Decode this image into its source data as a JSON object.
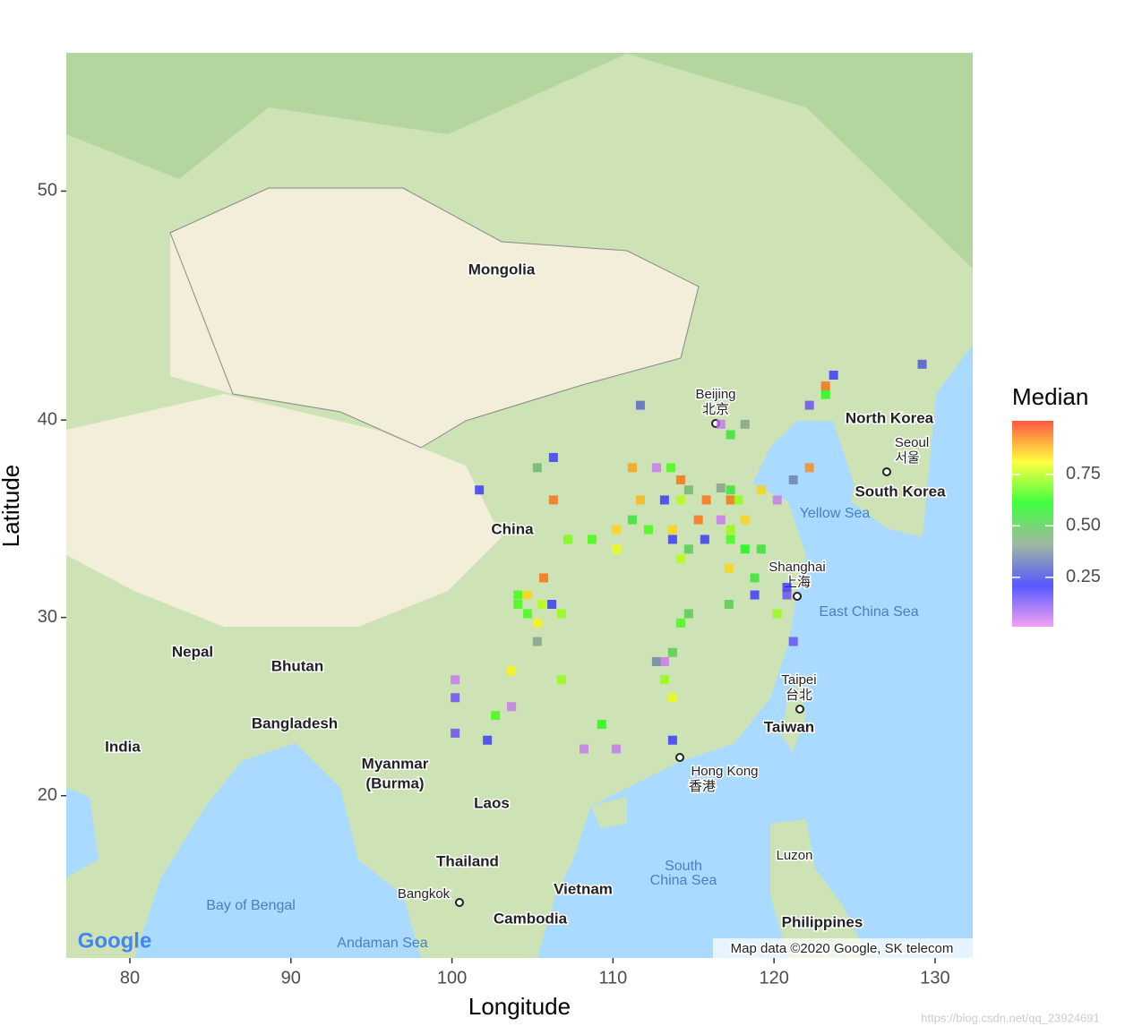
{
  "chart_data": {
    "type": "scatter",
    "x_label": "Longitude",
    "y_label": "Latitude",
    "projection": "mercator",
    "xlim": [
      76.05,
      132.34
    ],
    "ylim": [
      10.3,
      55.2
    ],
    "xticks": [
      80,
      90,
      100,
      110,
      120,
      130
    ],
    "yticks": [
      20,
      30,
      40,
      50
    ],
    "x": [
      123.7,
      129.2,
      123.2,
      123.2,
      122.2,
      111.7,
      116.7,
      117.3,
      118.2,
      106.3,
      105.3,
      111.2,
      112.7,
      113.6,
      114.2,
      122.2,
      121.2,
      101.7,
      106.3,
      111.7,
      113.2,
      114.2,
      115.8,
      117.3,
      114.7,
      117.3,
      117.8,
      119.2,
      120.2,
      116.7,
      111.2,
      112.2,
      113.7,
      115.3,
      116.7,
      117.3,
      118.2,
      110.2,
      113.7,
      115.7,
      117.3,
      107.2,
      108.7,
      110.2,
      114.7,
      118.2,
      119.2,
      114.2,
      105.7,
      117.2,
      118.8,
      120.8,
      118.8,
      120.8,
      104.1,
      104.7,
      104.1,
      105.6,
      106.2,
      104.7,
      106.8,
      105.3,
      117.2,
      114.7,
      114.2,
      120.2,
      105.3,
      121.2,
      113.7,
      112.7,
      113.2,
      100.2,
      103.7,
      113.2,
      106.8,
      100.2,
      113.7,
      103.7,
      102.7,
      109.3,
      100.2,
      102.2,
      108.2,
      110.2,
      113.7
    ],
    "values": [
      42.1,
      42.6,
      41.6,
      41.2,
      40.7,
      40.7,
      39.8,
      39.3,
      39.8,
      38.2,
      37.7,
      37.7,
      37.7,
      37.7,
      37.1,
      37.7,
      37.1,
      36.6,
      36.1,
      36.1,
      36.1,
      36.1,
      36.1,
      36.1,
      36.6,
      36.6,
      36.1,
      36.6,
      36.1,
      36.7,
      35.1,
      34.6,
      34.6,
      35.1,
      35.1,
      34.6,
      35.1,
      34.6,
      34.1,
      34.1,
      34.1,
      34.1,
      34.1,
      33.6,
      33.6,
      33.6,
      33.6,
      33.1,
      32.1,
      32.6,
      32.1,
      31.6,
      31.2,
      31.2,
      31.2,
      31.2,
      30.7,
      30.7,
      30.7,
      30.2,
      30.2,
      29.7,
      30.7,
      30.2,
      29.7,
      30.2,
      28.7,
      28.7,
      28.1,
      27.6,
      27.6,
      26.6,
      27.1,
      26.6,
      26.6,
      25.6,
      25.6,
      25.1,
      24.6,
      24.1,
      23.6,
      23.2,
      22.7,
      22.7,
      23.2
    ],
    "median": [
      0.2,
      0.27,
      0.95,
      0.62,
      0.15,
      0.3,
      0.05,
      0.55,
      0.4,
      0.2,
      0.45,
      0.9,
      0.05,
      0.65,
      0.95,
      0.92,
      0.35,
      0.2,
      0.95,
      0.88,
      0.2,
      0.75,
      0.95,
      0.95,
      0.45,
      0.55,
      0.72,
      0.85,
      0.05,
      0.4,
      0.55,
      0.65,
      0.85,
      0.95,
      0.05,
      0.72,
      0.85,
      0.85,
      0.2,
      0.22,
      0.65,
      0.7,
      0.65,
      0.8,
      0.5,
      0.6,
      0.55,
      0.75,
      0.95,
      0.85,
      0.55,
      0.2,
      0.2,
      0.15,
      0.65,
      0.85,
      0.65,
      0.75,
      0.22,
      0.65,
      0.72,
      0.82,
      0.5,
      0.5,
      0.65,
      0.72,
      0.4,
      0.15,
      0.5,
      0.35,
      0.05,
      0.05,
      0.82,
      0.72,
      0.72,
      0.15,
      0.8,
      0.05,
      0.65,
      0.62,
      0.15,
      0.2,
      0.05,
      0.05,
      0.2
    ],
    "colorbar": {
      "title": "Median",
      "lim": [
        0.01,
        1.01
      ],
      "ticks": [
        0.25,
        {
          "value": 0.5,
          "label": "0.50"
        },
        0.75
      ],
      "colors": [
        "#ee82ee",
        "#2020ff",
        "#80a080",
        "#00ff00",
        "#ffff00",
        "#ff2000"
      ]
    },
    "annotations": [
      "Mongolia",
      "China",
      "North Korea",
      "South Korea",
      "India",
      "Nepal",
      "Bhutan",
      "Bangladesh",
      "Myanmar",
      "(Burma)",
      "Laos",
      "Thailand",
      "Vietnam",
      "Cambodia",
      "Philippines",
      "Taiwan",
      "Beijing",
      "北京",
      "Shanghai",
      "上海",
      "Seoul",
      "서울",
      "Taipei",
      "台北",
      "Hong Kong",
      "香港",
      "Yellow Sea",
      "East China Sea",
      "South",
      "China Sea",
      "Bay of Bengal",
      "Andaman Sea",
      "Luzon",
      "Bangkok",
      "Map data ©2020 Google, SK telecom",
      "Google",
      "https://blog.csdn.net/qq_23924691"
    ]
  }
}
